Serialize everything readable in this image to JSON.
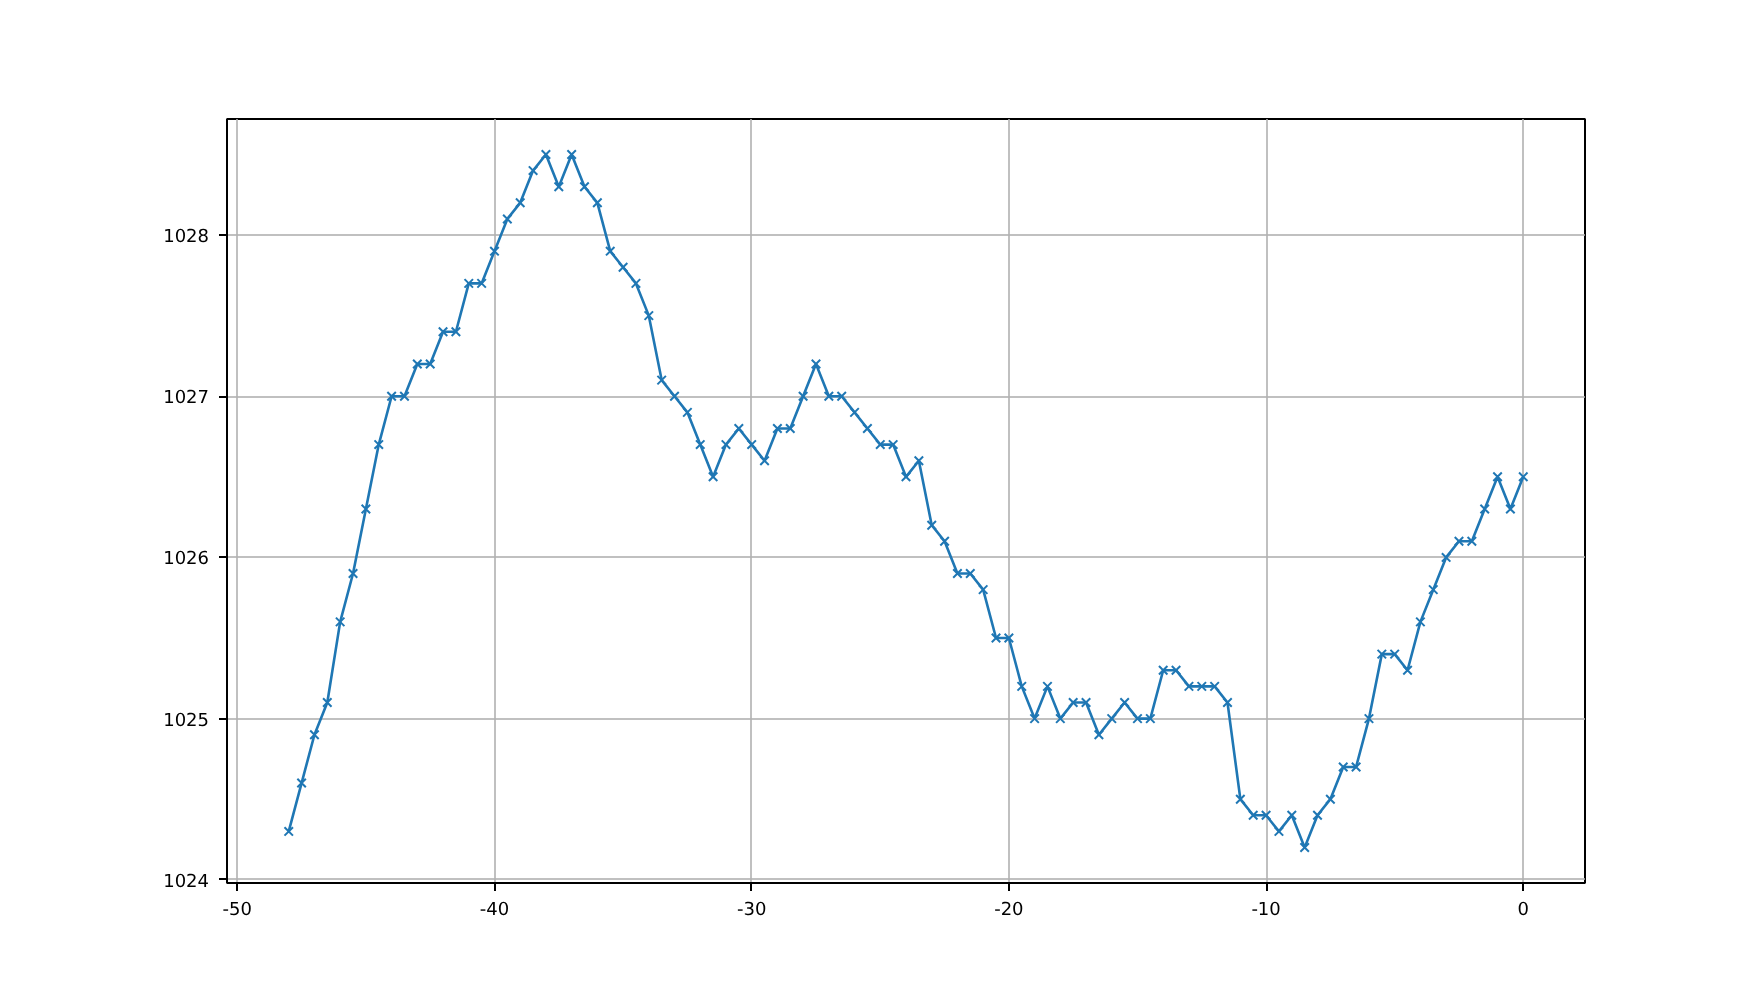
{
  "chart_data": {
    "type": "line",
    "xlim": [
      -50.4,
      2.4
    ],
    "ylim": [
      1023.98,
      1028.72
    ],
    "xticks": [
      -50,
      -40,
      -30,
      -20,
      -10,
      0
    ],
    "yticks": [
      1024,
      1025,
      1026,
      1027,
      1028
    ],
    "grid": true,
    "marker": "cross",
    "line_style": "solid",
    "series": [
      {
        "color": "#1f77b4",
        "x": [
          -48,
          -47.5,
          -47,
          -46.5,
          -46,
          -45.5,
          -45,
          -44.5,
          -44,
          -43.5,
          -43,
          -42.5,
          -42,
          -41.5,
          -41,
          -40.5,
          -40,
          -39.5,
          -39,
          -38.5,
          -38,
          -37.5,
          -37,
          -36.5,
          -36,
          -35.5,
          -35,
          -34.5,
          -34,
          -33.5,
          -33,
          -32.5,
          -32,
          -31.5,
          -31,
          -30.5,
          -30,
          -29.5,
          -29,
          -28.5,
          -28,
          -27.5,
          -27,
          -26.5,
          -26,
          -25.5,
          -25,
          -24.5,
          -24,
          -23.5,
          -23,
          -22.5,
          -22,
          -21.5,
          -21,
          -20.5,
          -20,
          -19.5,
          -19,
          -18.5,
          -18,
          -17.5,
          -17,
          -16.5,
          -16,
          -15.5,
          -15,
          -14.5,
          -14,
          -13.5,
          -13,
          -12.5,
          -12,
          -11.5,
          -11,
          -10.5,
          -10,
          -9.5,
          -9,
          -8.5,
          -8,
          -7.5,
          -7,
          -6.5,
          -6,
          -5.5,
          -5,
          -4.5,
          -4,
          -3.5,
          -3,
          -2.5,
          -2,
          -1.5,
          -1,
          -0.5,
          0
        ],
        "values": [
          1024.3,
          1024.6,
          1024.9,
          1025.1,
          1025.6,
          1025.9,
          1026.3,
          1026.7,
          1027.0,
          1027.0,
          1027.2,
          1027.2,
          1027.4,
          1027.4,
          1027.7,
          1027.7,
          1027.9,
          1028.1,
          1028.2,
          1028.4,
          1028.5,
          1028.3,
          1028.5,
          1028.3,
          1028.2,
          1027.9,
          1027.8,
          1027.7,
          1027.5,
          1027.1,
          1027.0,
          1026.9,
          1026.7,
          1026.5,
          1026.7,
          1026.8,
          1026.7,
          1026.6,
          1026.8,
          1026.8,
          1027.0,
          1027.2,
          1027.0,
          1027.0,
          1026.9,
          1026.8,
          1026.7,
          1026.7,
          1026.5,
          1026.6,
          1026.2,
          1026.1,
          1025.9,
          1025.9,
          1025.8,
          1025.5,
          1025.5,
          1025.2,
          1025.0,
          1025.2,
          1025.0,
          1025.1,
          1025.1,
          1024.9,
          1025.0,
          1025.1,
          1025.0,
          1025.0,
          1025.3,
          1025.3,
          1025.2,
          1025.2,
          1025.2,
          1025.1,
          1024.5,
          1024.4,
          1024.4,
          1024.3,
          1024.4,
          1024.2,
          1024.4,
          1024.5,
          1024.7,
          1024.7,
          1025.0,
          1025.4,
          1025.4,
          1025.3,
          1025.6,
          1025.8,
          1026.0,
          1026.1,
          1026.1,
          1026.3,
          1026.5,
          1026.3,
          1026.5
        ]
      }
    ]
  }
}
